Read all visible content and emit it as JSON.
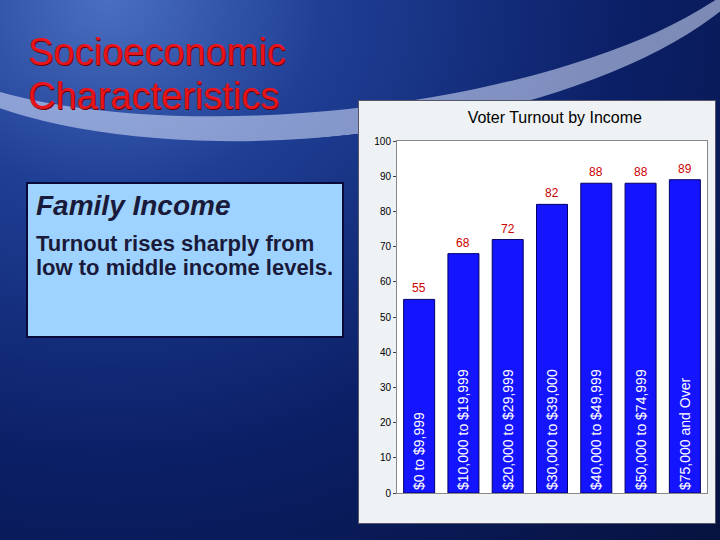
{
  "slide": {
    "title": "Socioeconomic Characteristics",
    "box_title": "Family Income",
    "box_text": "Turnout rises sharply from low to middle income levels."
  },
  "chart_data": {
    "type": "bar",
    "title": "Voter Turnout by Income",
    "categories": [
      "$0 to $9,999",
      "$10,000 to $19,999",
      "$20,000 to $29,999",
      "$30,000 to $39,000",
      "$40,000 to $49,999",
      "$50,000 to $74,999",
      "$75,000 and Over"
    ],
    "values": [
      55,
      68,
      72,
      82,
      88,
      88,
      89
    ],
    "color": "#1414ff",
    "ylim": [
      0,
      100
    ],
    "yticks": [
      0,
      10,
      20,
      30,
      40,
      50,
      60,
      70,
      80,
      90,
      100
    ],
    "grid": false,
    "data_labels": true,
    "tick_labels": "y"
  }
}
